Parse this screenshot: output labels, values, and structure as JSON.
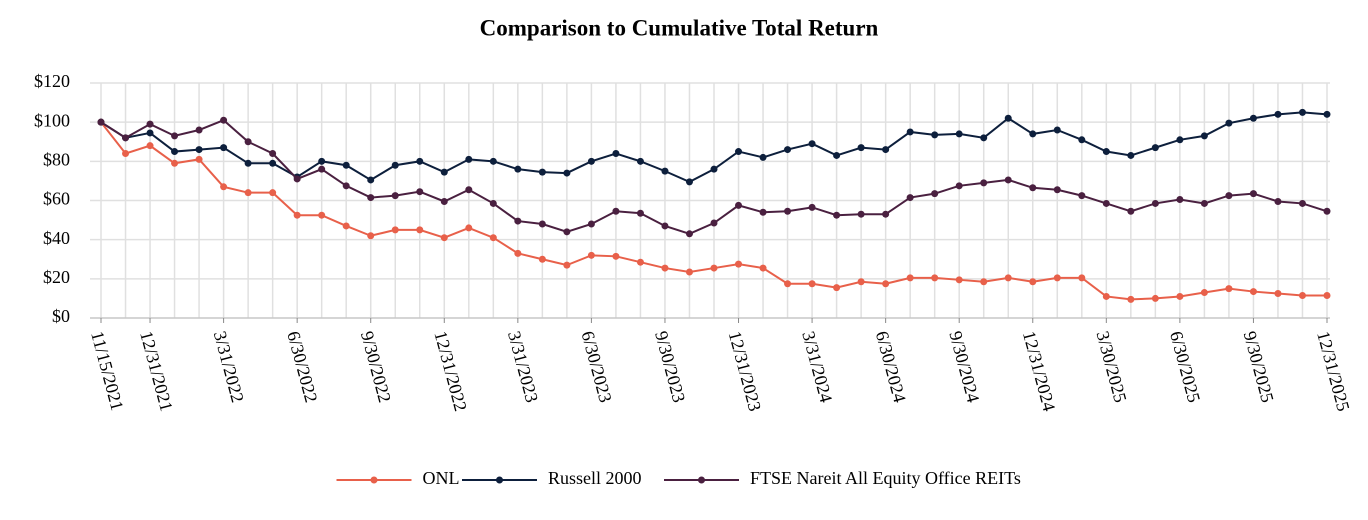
{
  "chart_data": {
    "type": "line",
    "title": "Comparison to Cumulative Total Return",
    "categories": [
      "11/15/2021",
      null,
      "12/31/2021",
      null,
      null,
      "3/31/2022",
      null,
      null,
      "6/30/2022",
      null,
      null,
      "9/30/2022",
      null,
      null,
      "12/31/2022",
      null,
      null,
      "3/31/2023",
      null,
      null,
      "6/30/2023",
      null,
      null,
      "9/30/2023",
      null,
      null,
      "12/31/2023",
      null,
      null,
      "3/31/2024",
      null,
      null,
      "6/30/2024",
      null,
      null,
      "9/30/2024",
      null,
      null,
      "12/31/2024",
      null,
      null,
      "3/30/2025",
      null,
      null,
      "6/30/2025",
      null,
      null,
      "9/30/2025",
      null,
      null,
      "12/31/2025"
    ],
    "series": [
      {
        "name": "ONL",
        "color": "#e8604a",
        "values": [
          100,
          84,
          88,
          79,
          81,
          67,
          64,
          64,
          52.5,
          52.5,
          47,
          42,
          45,
          45,
          41,
          46,
          41,
          33,
          30,
          27,
          32,
          31.5,
          28.5,
          25.5,
          23.5,
          25.5,
          27.5,
          25.5,
          17.5,
          17.5,
          15.5,
          18.5,
          17.5,
          20.5,
          20.5,
          19.5,
          18.5,
          20.5,
          18.5,
          20.5,
          20.5,
          11,
          9.5,
          10,
          11,
          13,
          15,
          13.5,
          12.5,
          11.5,
          11.5
        ]
      },
      {
        "name": "Russell 2000",
        "color": "#0d1f3c",
        "values": [
          100,
          92,
          94.5,
          85,
          86,
          87,
          79,
          79,
          72,
          80,
          78,
          70.5,
          78,
          80,
          74.5,
          81,
          80,
          76,
          74.5,
          74,
          80,
          84,
          80,
          75,
          69.5,
          76,
          85,
          82,
          86,
          89,
          83,
          87,
          86,
          95,
          93.5,
          94,
          92,
          102,
          94,
          96,
          91,
          85,
          83,
          87,
          91,
          93,
          99.5,
          102,
          104,
          105,
          104
        ]
      },
      {
        "name": "FTSE Nareit All Equity Office REITs",
        "color": "#4a2040",
        "values": [
          100,
          92,
          99,
          93,
          96,
          101,
          90,
          84,
          71,
          76,
          67.5,
          61.5,
          62.5,
          64.5,
          59.5,
          65.5,
          58.5,
          49.5,
          48,
          44,
          48,
          54.5,
          53.5,
          47,
          43,
          48.5,
          57.5,
          54,
          54.5,
          56.5,
          52.5,
          53,
          53,
          61.5,
          63.5,
          67.5,
          69,
          70.5,
          66.5,
          65.5,
          62.5,
          58.5,
          54.5,
          58.5,
          60.5,
          58.5,
          62.5,
          63.5,
          59.5,
          58.5,
          54.5
        ]
      }
    ],
    "ylim": [
      0,
      120
    ],
    "yticks": [
      {
        "value": 0,
        "label": "$0"
      },
      {
        "value": 20,
        "label": "$20"
      },
      {
        "value": 40,
        "label": "$40"
      },
      {
        "value": 60,
        "label": "$60"
      },
      {
        "value": 80,
        "label": "$80"
      },
      {
        "value": 100,
        "label": "$100"
      },
      {
        "value": 120,
        "label": "$120"
      }
    ],
    "grid": true,
    "legend": "bottom"
  }
}
